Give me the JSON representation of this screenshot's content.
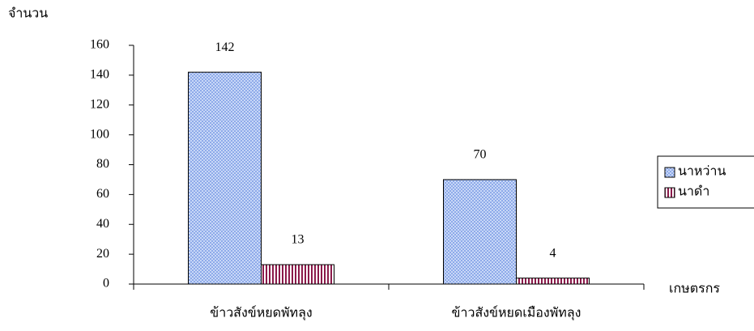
{
  "chart_data": {
    "type": "bar",
    "y_label": "จำนวน",
    "x_label": "เกษตรกร",
    "categories": [
      "ข้าวสังข์หยดพัทลุง",
      "ข้าวสังข์หยดเมืองพัทลุง"
    ],
    "series": [
      {
        "name": "นาหว่าน",
        "color": "#7f9fe6",
        "values": [
          142,
          70
        ]
      },
      {
        "name": "นาดำ",
        "color": "#8b1a4a",
        "values": [
          13,
          4
        ]
      }
    ],
    "ylim": [
      0,
      160
    ],
    "yticks": [
      0,
      20,
      40,
      60,
      80,
      100,
      120,
      140,
      160
    ],
    "grid": false,
    "legend": "right"
  }
}
